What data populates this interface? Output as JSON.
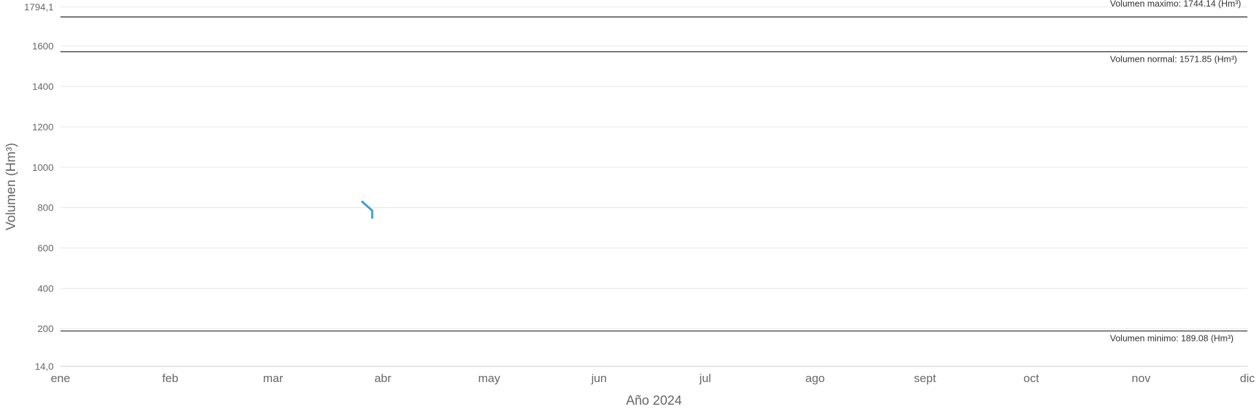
{
  "chart_data": {
    "type": "line",
    "title": "",
    "xlabel": "Año 2024",
    "ylabel": "Volumen (Hm³)",
    "ylim": [
      14.0,
      1794.1
    ],
    "x_range": [
      "2024-01-01",
      "2024-12-01"
    ],
    "y_ticks": [
      "14,0",
      "200",
      "400",
      "600",
      "800",
      "1000",
      "1200",
      "1400",
      "1600",
      "1794,1"
    ],
    "x_ticks": [
      "ene",
      "feb",
      "mar",
      "abr",
      "may",
      "jun",
      "jul",
      "ago",
      "sept",
      "oct",
      "nov",
      "dic"
    ],
    "grid": true,
    "legend": "none",
    "series": [
      {
        "color": "#3a9ad9",
        "points": [
          {
            "x": "2024-03-26",
            "y": 832
          },
          {
            "x": "2024-03-29",
            "y": 785
          },
          {
            "x": "2024-03-29",
            "y": 745
          }
        ]
      }
    ],
    "reference_lines": [
      {
        "label": "Volumen maximo: 1744.14 (Hm³)",
        "value": 1744.14,
        "color": "#333333"
      },
      {
        "label": "Volumen normal: 1571.85 (Hm³)",
        "value": 1571.85,
        "color": "#333333"
      },
      {
        "label": "Volumen minimo: 189.08 (Hm³)",
        "value": 189.08,
        "color": "#333333"
      }
    ]
  }
}
